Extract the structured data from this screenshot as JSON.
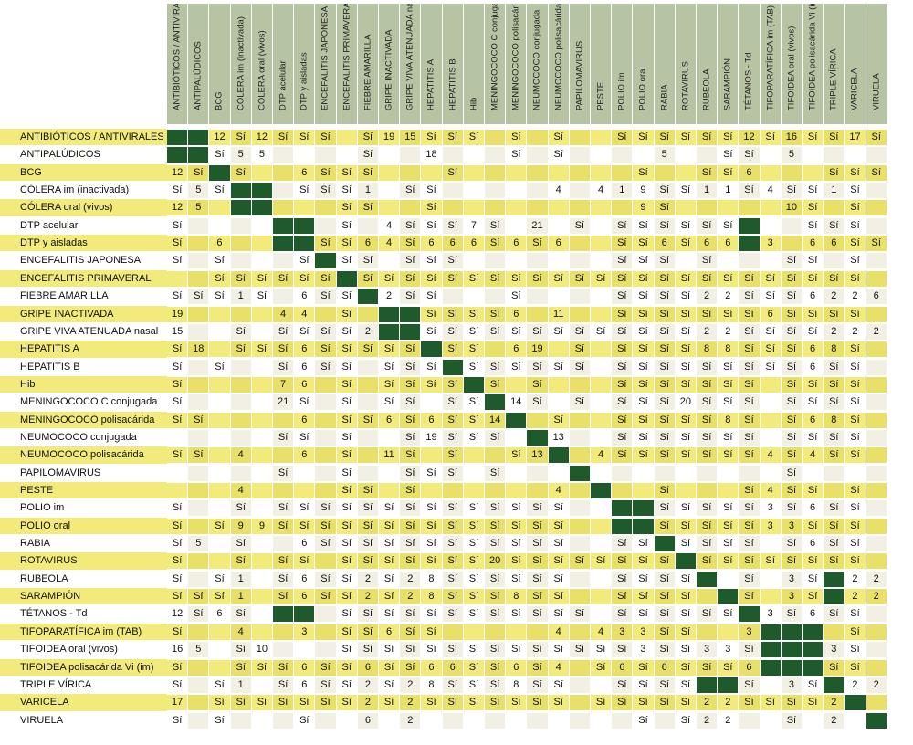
{
  "columns": [
    "ANTIBIÓTICOS / ANTIVIRALES",
    "ANTIPALÚDICOS",
    "BCG",
    "CÓLERA im (inactivada)",
    "CÓLERA oral (vivos)",
    "DTP acelular",
    "DTP y aisladas",
    "ENCEFALITIS JAPONESA",
    "ENCEFALITIS PRIMAVERAL",
    "FIEBRE AMARILLA",
    "GRIPE INACTIVADA",
    "GRIPE VIVA ATENUADA nasal",
    "HEPATITIS A",
    "HEPATITIS B",
    "Hib",
    "MENINGOCOCO C conjugada",
    "MENINGOCOCO polisacárida",
    "NEUMOCOCO conjugada",
    "NEUMOCOCO polisacárida",
    "PAPILOMAVIRUS",
    "PESTE",
    "POLIO im",
    "POLIO oral",
    "RABIA",
    "ROTAVIRUS",
    "RUBEOLA",
    "SARAMPIÓN",
    "TÉTANOS - Td",
    "TIFOPARATÍFICA im (TAB)",
    "TIFOIDEA oral (vivos)",
    "TIFOIDEA polisacárida Vi (im)",
    "TRIPLE VÍRICA",
    "VARICELA",
    "VIRUELA"
  ],
  "colors": {
    "header_bg": "#b7c4a3",
    "yellow_row": "#f2ea7a",
    "white_row": "#ffffff",
    "cell_alt_yellow": "#e9e06a",
    "cell_alt_white": "#f2f0e4",
    "diagonal": "#1f5a2c"
  },
  "rows": [
    {
      "label": "ANTIBIÓTICOS / ANTIVIRALES",
      "cells": [
        "#",
        "#",
        "12",
        "Sí",
        "12",
        "Sí",
        "Sí",
        "Sí",
        "",
        "Sí",
        "19",
        "15",
        "Sí",
        "Sí",
        "Sí",
        "",
        "Sí",
        "",
        "Sí",
        "",
        "",
        "Sí",
        "Sí",
        "Sí",
        "Sí",
        "Sí",
        "Sí",
        "12",
        "Sí",
        "16",
        "Sí",
        "Sí",
        "17",
        "Sí"
      ]
    },
    {
      "label": "ANTIPALÚDICOS",
      "cells": [
        "#",
        "#",
        "Sí",
        "5",
        "5",
        "",
        "",
        "",
        "",
        "Sí",
        "",
        "",
        "18",
        "",
        "",
        "",
        "Sí",
        "",
        "Sí",
        "",
        "",
        "",
        "",
        "5",
        "",
        "",
        "Sí",
        "Sí",
        "",
        "5",
        "",
        "",
        "",
        ""
      ]
    },
    {
      "label": "BCG",
      "cells": [
        "12",
        "Sí",
        "#",
        "Sí",
        "",
        "",
        "6",
        "Sí",
        "Sí",
        "Sí",
        "",
        "",
        "",
        "Sí",
        "",
        "",
        "",
        "",
        "",
        "",
        "",
        "",
        "Sí",
        "",
        "",
        "Sí",
        "Sí",
        "6",
        "",
        "",
        "",
        "Sí",
        "Sí",
        "Sí"
      ]
    },
    {
      "label": "CÓLERA im (inactivada)",
      "cells": [
        "Sí",
        "5",
        "Sí",
        "#",
        "#",
        "",
        "Sí",
        "Sí",
        "Sí",
        "1",
        "",
        "Sí",
        "Sí",
        "",
        "",
        "",
        "",
        "",
        "4",
        "",
        "4",
        "1",
        "9",
        "Sí",
        "Sí",
        "1",
        "1",
        "Sí",
        "4",
        "Sí",
        "Sí",
        "1",
        "Sí",
        ""
      ]
    },
    {
      "label": "CÓLERA oral (vivos)",
      "cells": [
        "12",
        "5",
        "",
        "#",
        "#",
        "",
        "",
        "",
        "Sí",
        "Sí",
        "",
        "",
        "Sí",
        "",
        "",
        "",
        "",
        "",
        "",
        "",
        "",
        "",
        "9",
        "Sí",
        "",
        "",
        "",
        "",
        "",
        "10",
        "Sí",
        "",
        "Sí",
        ""
      ]
    },
    {
      "label": "DTP acelular",
      "cells": [
        "Sí",
        "",
        "",
        "",
        "",
        "#",
        "#",
        "",
        "Sí",
        "",
        "4",
        "Sí",
        "Sí",
        "Sí",
        "7",
        "Sí",
        "",
        "21",
        "",
        "Sí",
        "",
        "Sí",
        "Sí",
        "Sí",
        "Sí",
        "Sí",
        "Sí",
        "#",
        "",
        "",
        "Sí",
        "Sí",
        "Sí",
        ""
      ]
    },
    {
      "label": "DTP y aisladas",
      "cells": [
        "Sí",
        "",
        "6",
        "",
        "",
        "#",
        "#",
        "Sí",
        "Sí",
        "6",
        "4",
        "Sí",
        "6",
        "6",
        "6",
        "Sí",
        "6",
        "Sí",
        "6",
        "",
        "",
        "Sí",
        "Sí",
        "6",
        "Sí",
        "6",
        "6",
        "#",
        "3",
        "",
        "6",
        "6",
        "Sí",
        "Sí"
      ]
    },
    {
      "label": "ENCEFALITIS JAPONESA",
      "cells": [
        "Sí",
        "",
        "Sí",
        "",
        "",
        "",
        "Sí",
        "#",
        "Sí",
        "Sí",
        "",
        "Sí",
        "Sí",
        "Sí",
        "",
        "",
        "",
        "",
        "",
        "",
        "",
        "Sí",
        "Sí",
        "Sí",
        "",
        "Sí",
        "",
        "",
        "",
        "Sí",
        "Sí",
        "",
        "Sí",
        ""
      ]
    },
    {
      "label": "ENCEFALITIS PRIMAVERAL",
      "cells": [
        "",
        "",
        "Sí",
        "Sí",
        "Sí",
        "Sí",
        "Sí",
        "Sí",
        "#",
        "Sí",
        "Sí",
        "Sí",
        "Sí",
        "Sí",
        "Sí",
        "Sí",
        "Sí",
        "Sí",
        "Sí",
        "Sí",
        "Sí",
        "Sí",
        "Sí",
        "Sí",
        "Sí",
        "Sí",
        "Sí",
        "Sí",
        "Sí",
        "Sí",
        "Sí",
        "Sí",
        "Sí",
        ""
      ]
    },
    {
      "label": "FIEBRE AMARILLA",
      "cells": [
        "Sí",
        "Sí",
        "Sí",
        "1",
        "Sí",
        "",
        "6",
        "Sí",
        "Sí",
        "#",
        "2",
        "Sí",
        "Sí",
        "",
        "",
        "",
        "Sí",
        "",
        "",
        "",
        "",
        "Sí",
        "Sí",
        "Sí",
        "Sí",
        "2",
        "2",
        "Sí",
        "Sí",
        "Sí",
        "6",
        "2",
        "2",
        "6"
      ]
    },
    {
      "label": "GRIPE INACTIVADA",
      "cells": [
        "19",
        "",
        "",
        "",
        "",
        "4",
        "4",
        "",
        "Sí",
        "",
        "#",
        "#",
        "Sí",
        "Sí",
        "Sí",
        "Sí",
        "6",
        "",
        "11",
        "",
        "",
        "Sí",
        "Sí",
        "Sí",
        "Sí",
        "Sí",
        "Sí",
        "Sí",
        "6",
        "Sí",
        "Sí",
        "Sí",
        "Sí",
        ""
      ]
    },
    {
      "label": "GRIPE VIVA ATENUADA nasal",
      "cells": [
        "15",
        "",
        "",
        "Sí",
        "",
        "Sí",
        "Sí",
        "Sí",
        "Sí",
        "2",
        "#",
        "#",
        "Sí",
        "Sí",
        "Sí",
        "Sí",
        "Sí",
        "Sí",
        "Sí",
        "Sí",
        "Sí",
        "Sí",
        "Sí",
        "Sí",
        "Sí",
        "2",
        "2",
        "Sí",
        "Sí",
        "Sí",
        "Sí",
        "2",
        "2",
        "2"
      ]
    },
    {
      "label": "HEPATITIS A",
      "cells": [
        "Sí",
        "18",
        "",
        "Sí",
        "Sí",
        "Sí",
        "6",
        "Sí",
        "Sí",
        "Sí",
        "Sí",
        "Sí",
        "#",
        "Sí",
        "Sí",
        "",
        "6",
        "19",
        "",
        "Sí",
        "",
        "Sí",
        "Sí",
        "Sí",
        "Sí",
        "8",
        "8",
        "Sí",
        "Sí",
        "Sí",
        "6",
        "8",
        "Sí",
        ""
      ]
    },
    {
      "label": "HEPATITIS B",
      "cells": [
        "Sí",
        "",
        "Sí",
        "",
        "",
        "Sí",
        "6",
        "Sí",
        "Sí",
        "",
        "Sí",
        "Sí",
        "Sí",
        "#",
        "Sí",
        "Sí",
        "Sí",
        "Sí",
        "Sí",
        "Sí",
        "",
        "Sí",
        "Sí",
        "Sí",
        "Sí",
        "Sí",
        "Sí",
        "Sí",
        "Sí",
        "Sí",
        "6",
        "Sí",
        "Sí",
        ""
      ]
    },
    {
      "label": "Hib",
      "cells": [
        "Sí",
        "",
        "",
        "",
        "",
        "7",
        "6",
        "",
        "Sí",
        "",
        "Sí",
        "Sí",
        "Sí",
        "Sí",
        "#",
        "Sí",
        "",
        "Sí",
        "",
        "",
        "",
        "Sí",
        "Sí",
        "Sí",
        "Sí",
        "Sí",
        "Sí",
        "Sí",
        "",
        "Sí",
        "Sí",
        "Sí",
        "Sí",
        ""
      ]
    },
    {
      "label": "MENINGOCOCO C conjugada",
      "cells": [
        "Sí",
        "",
        "",
        "",
        "",
        "21",
        "Sí",
        "",
        "Sí",
        "",
        "Sí",
        "Sí",
        "",
        "Sí",
        "Sí",
        "#",
        "14",
        "Sí",
        "",
        "Sí",
        "",
        "Sí",
        "Sí",
        "Sí",
        "20",
        "Sí",
        "Sí",
        "Sí",
        "",
        "Sí",
        "Sí",
        "Sí",
        "Sí",
        ""
      ]
    },
    {
      "label": "MENINGOCOCO polisacárida",
      "cells": [
        "Sí",
        "Sí",
        "",
        "",
        "",
        "",
        "6",
        "",
        "Sí",
        "Sí",
        "6",
        "Sí",
        "6",
        "Sí",
        "Sí",
        "14",
        "#",
        "",
        "Sí",
        "",
        "",
        "Sí",
        "Sí",
        "Sí",
        "Sí",
        "Sí",
        "8",
        "Sí",
        "",
        "Sí",
        "6",
        "8",
        "Sí",
        ""
      ]
    },
    {
      "label": "NEUMOCOCO conjugada",
      "cells": [
        "",
        "",
        "",
        "",
        "",
        "Sí",
        "Sí",
        "",
        "Sí",
        "",
        "",
        "Sí",
        "19",
        "Sí",
        "Sí",
        "Sí",
        "",
        "#",
        "13",
        "",
        "",
        "Sí",
        "Sí",
        "Sí",
        "Sí",
        "Sí",
        "Sí",
        "Sí",
        "",
        "Sí",
        "Sí",
        "Sí",
        "Sí",
        ""
      ]
    },
    {
      "label": "NEUMOCOCO polisacárida",
      "cells": [
        "Sí",
        "Sí",
        "",
        "4",
        "",
        "",
        "6",
        "",
        "Sí",
        "",
        "11",
        "Sí",
        "",
        "Sí",
        "",
        "",
        "Sí",
        "13",
        "#",
        "",
        "4",
        "Sí",
        "Sí",
        "Sí",
        "Sí",
        "Sí",
        "Sí",
        "Sí",
        "4",
        "Sí",
        "4",
        "Sí",
        "Sí",
        ""
      ]
    },
    {
      "label": "PAPILOMAVIRUS",
      "cells": [
        "",
        "",
        "",
        "",
        "",
        "Sí",
        "",
        "",
        "Sí",
        "",
        "",
        "Sí",
        "Sí",
        "Sí",
        "",
        "Sí",
        "",
        "",
        "",
        "#",
        "",
        "",
        "",
        "",
        "",
        "",
        "",
        "",
        "",
        "Sí",
        "",
        "",
        "",
        ""
      ]
    },
    {
      "label": "PESTE",
      "cells": [
        "",
        "",
        "",
        "4",
        "",
        "",
        "",
        "",
        "Sí",
        "Sí",
        "",
        "Sí",
        "",
        "",
        "",
        "",
        "",
        "",
        "4",
        "",
        "#",
        "",
        "",
        "Sí",
        "",
        "",
        "",
        "Sí",
        "4",
        "Sí",
        "Sí",
        "",
        "Sí",
        ""
      ]
    },
    {
      "label": "POLIO im",
      "cells": [
        "Sí",
        "",
        "",
        "Sí",
        "",
        "Sí",
        "Sí",
        "Sí",
        "Sí",
        "Sí",
        "Sí",
        "Sí",
        "Sí",
        "Sí",
        "Sí",
        "Sí",
        "Sí",
        "Sí",
        "Sí",
        "",
        "",
        "#",
        "#",
        "Sí",
        "Sí",
        "Sí",
        "Sí",
        "Sí",
        "3",
        "Sí",
        "6",
        "Sí",
        "Sí",
        ""
      ]
    },
    {
      "label": "POLIO oral",
      "cells": [
        "Sí",
        "",
        "Sí",
        "9",
        "9",
        "Sí",
        "Sí",
        "Sí",
        "Sí",
        "Sí",
        "Sí",
        "Sí",
        "Sí",
        "Sí",
        "Sí",
        "Sí",
        "Sí",
        "Sí",
        "Sí",
        "",
        "",
        "#",
        "#",
        "Sí",
        "Sí",
        "Sí",
        "Sí",
        "Sí",
        "3",
        "3",
        "Sí",
        "Sí",
        "Sí",
        ""
      ]
    },
    {
      "label": "RABIA",
      "cells": [
        "Sí",
        "5",
        "",
        "Sí",
        "",
        "",
        "6",
        "Sí",
        "Sí",
        "Sí",
        "Sí",
        "Sí",
        "Sí",
        "Sí",
        "Sí",
        "Sí",
        "Sí",
        "Sí",
        "Sí",
        "",
        "",
        "Sí",
        "Sí",
        "#",
        "Sí",
        "Sí",
        "Sí",
        "Sí",
        "",
        "Sí",
        "6",
        "Sí",
        "Sí",
        ""
      ]
    },
    {
      "label": "ROTAVIRUS",
      "cells": [
        "Sí",
        "",
        "",
        "Sí",
        "",
        "Sí",
        "Sí",
        "",
        "Sí",
        "Sí",
        "Sí",
        "Sí",
        "Sí",
        "Sí",
        "Sí",
        "20",
        "Sí",
        "Sí",
        "Sí",
        "Sí",
        "Sí",
        "Sí",
        "Sí",
        "Sí",
        "#",
        "Sí",
        "Sí",
        "Sí",
        "Sí",
        "Sí",
        "Sí",
        "Sí",
        "Sí",
        ""
      ]
    },
    {
      "label": "RUBEOLA",
      "cells": [
        "Sí",
        "",
        "Sí",
        "1",
        "",
        "Sí",
        "6",
        "Sí",
        "Sí",
        "2",
        "Sí",
        "2",
        "8",
        "Sí",
        "Sí",
        "Sí",
        "Sí",
        "Sí",
        "Sí",
        "",
        "",
        "Sí",
        "Sí",
        "Sí",
        "Sí",
        "#",
        "",
        "Sí",
        "",
        "3",
        "Sí",
        "#",
        "2",
        "2"
      ]
    },
    {
      "label": "SARAMPIÓN",
      "cells": [
        "Sí",
        "Sí",
        "Sí",
        "1",
        "",
        "Sí",
        "6",
        "Sí",
        "Sí",
        "2",
        "Sí",
        "2",
        "8",
        "Sí",
        "Sí",
        "Sí",
        "8",
        "Sí",
        "Sí",
        "",
        "",
        "Sí",
        "Sí",
        "Sí",
        "Sí",
        "",
        "#",
        "Sí",
        "",
        "3",
        "Sí",
        "#",
        "2",
        "2"
      ]
    },
    {
      "label": "TÉTANOS - Td",
      "cells": [
        "12",
        "Sí",
        "6",
        "Sí",
        "",
        "#",
        "#",
        "",
        "Sí",
        "Sí",
        "Sí",
        "Sí",
        "Sí",
        "Sí",
        "Sí",
        "Sí",
        "Sí",
        "Sí",
        "Sí",
        "Sí",
        "",
        "Sí",
        "Sí",
        "Sí",
        "Sí",
        "Sí",
        "Sí",
        "#",
        "3",
        "Sí",
        "6",
        "Sí",
        "Sí",
        ""
      ]
    },
    {
      "label": "TIFOPARATÍFICA im (TAB)",
      "cells": [
        "Sí",
        "",
        "",
        "4",
        "",
        "",
        "3",
        "",
        "Sí",
        "Sí",
        "6",
        "Sí",
        "Sí",
        "",
        "",
        "",
        "",
        "",
        "4",
        "",
        "4",
        "3",
        "3",
        "Sí",
        "Sí",
        "",
        "",
        "3",
        "#",
        "#",
        "#",
        "",
        "Sí",
        ""
      ]
    },
    {
      "label": "TIFOIDEA oral (vivos)",
      "cells": [
        "16",
        "5",
        "",
        "Sí",
        "10",
        "",
        "",
        "",
        "Sí",
        "Sí",
        "Sí",
        "Sí",
        "Sí",
        "Sí",
        "Sí",
        "Sí",
        "Sí",
        "Sí",
        "Sí",
        "Sí",
        "Sí",
        "Sí",
        "3",
        "Sí",
        "Sí",
        "3",
        "3",
        "Sí",
        "#",
        "#",
        "#",
        "3",
        "Sí",
        ""
      ]
    },
    {
      "label": "TIFOIDEA polisacárida Vi (im)",
      "cells": [
        "Sí",
        "",
        "",
        "Sí",
        "Sí",
        "Sí",
        "6",
        "Sí",
        "Sí",
        "6",
        "Sí",
        "Sí",
        "6",
        "6",
        "Sí",
        "Sí",
        "6",
        "Sí",
        "4",
        "",
        "Sí",
        "6",
        "Sí",
        "6",
        "Sí",
        "Sí",
        "Sí",
        "6",
        "#",
        "#",
        "#",
        "Sí",
        "Sí",
        ""
      ]
    },
    {
      "label": "TRIPLE VÍRICA",
      "cells": [
        "Sí",
        "",
        "Sí",
        "1",
        "",
        "Sí",
        "6",
        "Sí",
        "Sí",
        "2",
        "Sí",
        "2",
        "8",
        "Sí",
        "Sí",
        "Sí",
        "8",
        "Sí",
        "Sí",
        "",
        "",
        "Sí",
        "Sí",
        "Sí",
        "Sí",
        "#",
        "#",
        "Sí",
        "",
        "3",
        "Sí",
        "#",
        "2",
        "2"
      ]
    },
    {
      "label": "VARICELA",
      "cells": [
        "17",
        "",
        "Sí",
        "Sí",
        "Sí",
        "Sí",
        "Sí",
        "Sí",
        "Sí",
        "2",
        "Sí",
        "2",
        "Sí",
        "Sí",
        "Sí",
        "Sí",
        "Sí",
        "Sí",
        "Sí",
        "",
        "Sí",
        "Sí",
        "Sí",
        "Sí",
        "Sí",
        "2",
        "2",
        "Sí",
        "Sí",
        "Sí",
        "Sí",
        "2",
        "#",
        ""
      ]
    },
    {
      "label": "VIRUELA",
      "cells": [
        "Sí",
        "",
        "Sí",
        "",
        "",
        "",
        "Sí",
        "",
        "",
        "6",
        "",
        "2",
        "",
        "",
        "",
        "",
        "",
        "",
        "",
        "",
        "",
        "",
        "Sí",
        "",
        "Sí",
        "2",
        "2",
        "",
        "",
        "Sí",
        "",
        "2",
        "",
        "#"
      ]
    }
  ]
}
